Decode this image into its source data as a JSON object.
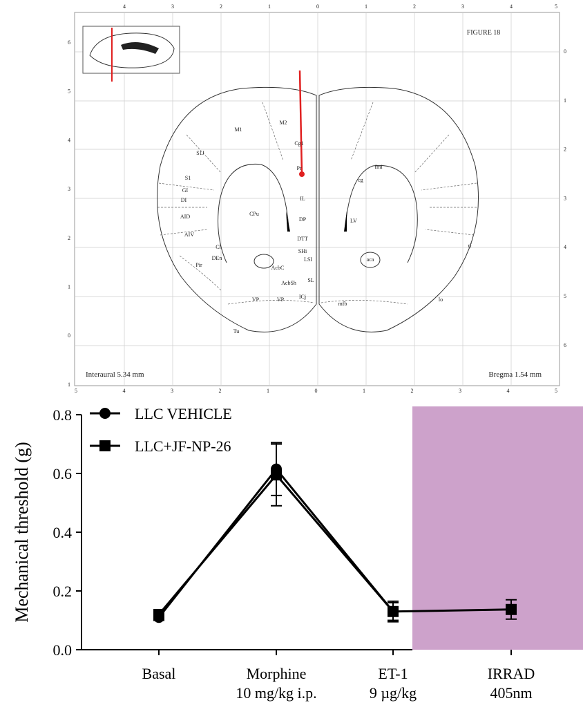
{
  "atlas": {
    "figure_label": "FIGURE 18",
    "interaural": "Interaural 5.34 mm",
    "bregma": "Bregma 1.54 mm",
    "top_scale": [
      "4",
      "3",
      "2",
      "1",
      "0",
      "1",
      "2",
      "3",
      "4",
      "5"
    ],
    "bottom_scale": [
      "5",
      "4",
      "3",
      "2",
      "1",
      "0",
      "1",
      "2",
      "3",
      "4",
      "5"
    ],
    "left_scale": [
      "6",
      "5",
      "4",
      "3",
      "2",
      "1",
      "0",
      "1"
    ],
    "right_scale": [
      "0",
      "1",
      "2",
      "3",
      "4",
      "5",
      "6"
    ],
    "regions": [
      "M1",
      "M2",
      "Cg1",
      "S1J",
      "S1",
      "GI",
      "DI",
      "AID",
      "AIV",
      "Cl",
      "CPu",
      "Pr",
      "IL",
      "DP",
      "DTT",
      "SHi",
      "LSI",
      "AcbC",
      "AcbSh",
      "DEn",
      "Pir",
      "VP",
      "VP",
      "ICj",
      "SL",
      "Tu",
      "fmi",
      "cg",
      "LV",
      "aca",
      "rf",
      "lo",
      "mfb"
    ]
  },
  "chart_data": {
    "type": "line",
    "categories": [
      "Basal",
      "Morphine",
      "ET-1",
      "IRRAD"
    ],
    "category_sublabels": [
      null,
      "10 mg/kg i.p.",
      "9 µg/kg",
      "405nm"
    ],
    "ylabel": "Mechanical threshold (g)",
    "ylim": [
      0,
      0.8
    ],
    "yticks": [
      {
        "value": 0,
        "label": "0.0"
      },
      0.2,
      0.4,
      0.6,
      0.8
    ],
    "highlight_color": "#cda2cb",
    "series": [
      {
        "name": "LLC VEHICLE",
        "color": "#000000",
        "marker": "circle",
        "values": [
          0.11,
          0.615,
          0.13,
          null
        ],
        "errors": [
          0.01,
          0.09,
          0.03,
          null
        ]
      },
      {
        "name": "LLC+JF-NP-26",
        "color": "#000000",
        "marker": "square",
        "values": [
          0.12,
          0.595,
          0.13,
          0.137
        ],
        "errors": [
          0.01,
          0.105,
          0.035,
          0.033
        ]
      }
    ]
  }
}
